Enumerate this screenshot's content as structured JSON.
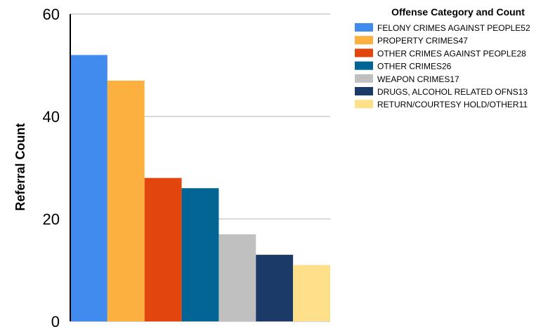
{
  "chart_data": {
    "type": "bar",
    "title": "",
    "xlabel": "",
    "ylabel": "Referral Count",
    "ylim": [
      0,
      60
    ],
    "yticks": [
      0,
      20,
      40,
      60
    ],
    "grid": true,
    "legend": {
      "title": "Offense Category and Count",
      "placement": "right"
    },
    "categories": [
      "FELONY CRIMES AGAINST PEOPLE",
      "PROPERTY CRIMES",
      "OTHER CRIMES AGAINST PEOPLE",
      "OTHER CRIMES",
      "WEAPON CRIMES",
      "DRUGS, ALCOHOL RELATED OFNS",
      "RETURN/COURTESY HOLD/OTHER"
    ],
    "legend_labels": [
      "FELONY CRIMES AGAINST PEOPLE52",
      "PROPERTY CRIMES47",
      "OTHER CRIMES AGAINST PEOPLE28",
      "OTHER CRIMES26",
      "WEAPON CRIMES17",
      "DRUGS, ALCOHOL RELATED OFNS13",
      "RETURN/COURTESY HOLD/OTHER11"
    ],
    "values": [
      52,
      47,
      28,
      26,
      17,
      13,
      11
    ],
    "colors": [
      "#418bee",
      "#fbb040",
      "#e2460e",
      "#036593",
      "#c0c0c0",
      "#1b3a68",
      "#fee08a"
    ]
  }
}
